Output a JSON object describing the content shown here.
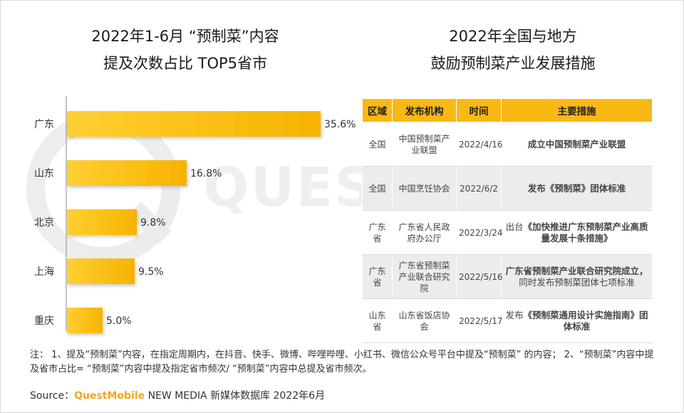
{
  "left_title": {
    "line1": "2022年1-6月 “预制菜”内容",
    "line2": "提及次数占比 TOP5省市"
  },
  "right_title": {
    "line1": "2022年全国与地方",
    "line2": "鼓励预制菜产业发展措施"
  },
  "watermark": "QUEST",
  "chart_data": {
    "type": "bar",
    "orientation": "horizontal",
    "title": "2022年1-6月 “预制菜”内容提及次数占比 TOP5省市",
    "categories": [
      "广东",
      "山东",
      "北京",
      "上海",
      "重庆"
    ],
    "values": [
      35.6,
      16.8,
      9.8,
      9.5,
      5.0
    ],
    "value_labels": [
      "35.6%",
      "16.8%",
      "9.8%",
      "9.5%",
      "5.0%"
    ],
    "unit": "%",
    "xlim": [
      0,
      40
    ],
    "bar_color": "#f9b814",
    "grid": false
  },
  "table": {
    "headers": [
      "区域",
      "发布机构",
      "时间",
      "主要措施"
    ],
    "rows": [
      {
        "region": "全国",
        "org": "中国预制菜产业联盟",
        "date": "2022/4/16",
        "measure_prefix": "",
        "measure_bold": "成立中国预制菜产业联盟",
        "measure_suffix": ""
      },
      {
        "region": "全国",
        "org": "中国烹饪协会",
        "date": "2022/6/2",
        "measure_prefix": "",
        "measure_bold": "发布《预制菜》团体标准",
        "measure_suffix": ""
      },
      {
        "region": "广东省",
        "org": "广东省人民政府办公厅",
        "date": "2022/3/24",
        "measure_prefix": "出台",
        "measure_bold": "《加快推进广东预制菜产业高质量发展十条措施》",
        "measure_suffix": ""
      },
      {
        "region": "广东省",
        "org": "广东省预制菜产业联合研究院",
        "date": "2022/5/16",
        "measure_prefix": "",
        "measure_bold": "广东省预制菜产业联合研究院成立，",
        "measure_suffix": "同时发布预制菜团体七项标准"
      },
      {
        "region": "山东省",
        "org": "山东省饭店协会",
        "date": "2022/5/17",
        "measure_prefix": "发布",
        "measure_bold": "《预制菜通用设计实施指南》团体标准",
        "measure_suffix": ""
      }
    ]
  },
  "note": "注： 1、提及“预制菜”内容，在指定周期内，在抖音、快手、微博、哔哩哔哩、小红书、微信公众号平台中提及“预制菜” 的内容； 2、“预制菜”内容中提及省市占比= “预制菜”内容中提及指定省市频次/ “预制菜”内容中总提及省市频次。",
  "source": {
    "label": "Source：",
    "brand": "QuestMobile",
    "rest": " NEW MEDIA 新媒体数据库 2022年6月"
  }
}
